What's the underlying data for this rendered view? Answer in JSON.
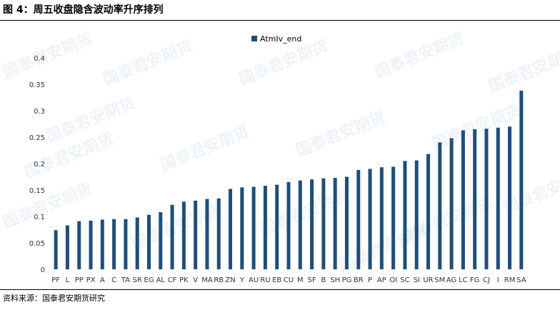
{
  "figure": {
    "title": "图 4：周五收盘隐含波动率升序排列",
    "source": "资料来源：国泰君安期货研究",
    "watermark_text": "国泰君安期货"
  },
  "colors": {
    "bar": "#1f4e79",
    "text": "#333333"
  },
  "chart_data": {
    "type": "bar",
    "title": "",
    "xlabel": "",
    "ylabel": "",
    "ylim": [
      0,
      0.4
    ],
    "yticks": [
      "0",
      "0.05",
      "0.1",
      "0.15",
      "0.2",
      "0.25",
      "0.3",
      "0.35",
      "0.4"
    ],
    "ytick_values": [
      0,
      0.05,
      0.1,
      0.15,
      0.2,
      0.25,
      0.3,
      0.35,
      0.4
    ],
    "grid": false,
    "legend_position": "top-center",
    "categories": [
      "PF",
      "L",
      "PP",
      "PX",
      "A",
      "C",
      "TA",
      "SR",
      "EG",
      "AL",
      "CF",
      "PK",
      "V",
      "MA",
      "RB",
      "ZN",
      "Y",
      "AU",
      "RU",
      "EB",
      "CU",
      "M",
      "SF",
      "B",
      "SH",
      "PG",
      "BR",
      "P",
      "AP",
      "OI",
      "SC",
      "SI",
      "UR",
      "SM",
      "AG",
      "LC",
      "FG",
      "CJ",
      "I",
      "RM",
      "SA"
    ],
    "series": [
      {
        "name": "AtmIv_end",
        "values": [
          0.074,
          0.083,
          0.091,
          0.092,
          0.094,
          0.095,
          0.095,
          0.098,
          0.103,
          0.108,
          0.122,
          0.128,
          0.13,
          0.133,
          0.134,
          0.152,
          0.155,
          0.156,
          0.158,
          0.16,
          0.165,
          0.168,
          0.17,
          0.172,
          0.173,
          0.175,
          0.188,
          0.19,
          0.193,
          0.194,
          0.205,
          0.206,
          0.218,
          0.24,
          0.248,
          0.263,
          0.265,
          0.266,
          0.268,
          0.27,
          0.338
        ]
      }
    ]
  }
}
